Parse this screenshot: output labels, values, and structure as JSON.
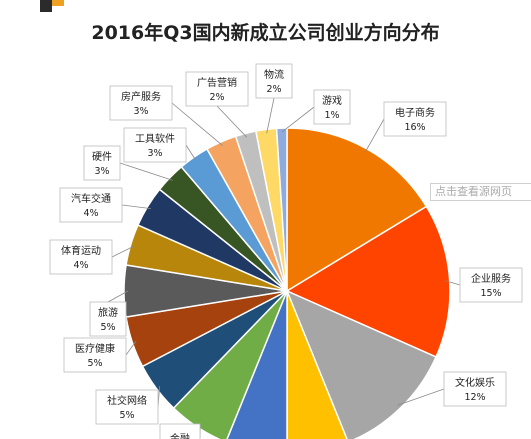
{
  "chart_data": {
    "type": "pie",
    "title": "2016年Q3国内新成立公司创业方向分布",
    "slices": [
      {
        "label": "电子商务",
        "value": 16,
        "value_label": "16%",
        "color": "#f07700"
      },
      {
        "label": "企业服务",
        "value": 15,
        "value_label": "15%",
        "color": "#ff4400"
      },
      {
        "label": "文化娱乐",
        "value": 12,
        "value_label": "12%",
        "color": "#a6a6a6"
      },
      {
        "label": "",
        "value": 6,
        "value_label": "",
        "color": "#ffc000"
      },
      {
        "label": "",
        "value": 6,
        "value_label": "",
        "color": "#4472c4"
      },
      {
        "label": "金融",
        "value": 6,
        "value_label": "",
        "color": "#70ad47"
      },
      {
        "label": "社交网络",
        "value": 5,
        "value_label": "5%",
        "color": "#1f4e79"
      },
      {
        "label": "医疗健康",
        "value": 5,
        "value_label": "5%",
        "color": "#a5420e"
      },
      {
        "label": "旅游",
        "value": 5,
        "value_label": "5%",
        "color": "#5a5a5a"
      },
      {
        "label": "体育运动",
        "value": 4,
        "value_label": "4%",
        "color": "#b8860b"
      },
      {
        "label": "汽车交通",
        "value": 4,
        "value_label": "4%",
        "color": "#203864"
      },
      {
        "label": "硬件",
        "value": 3,
        "value_label": "3%",
        "color": "#375623"
      },
      {
        "label": "工具软件",
        "value": 3,
        "value_label": "3%",
        "color": "#5b9bd5"
      },
      {
        "label": "房产服务",
        "value": 3,
        "value_label": "3%",
        "color": "#f4a460"
      },
      {
        "label": "广告营销",
        "value": 2,
        "value_label": "2%",
        "color": "#bfbfbf"
      },
      {
        "label": "物流",
        "value": 2,
        "value_label": "2%",
        "color": "#ffd966"
      },
      {
        "label": "游戏",
        "value": 1,
        "value_label": "1%",
        "color": "#8faadc"
      }
    ],
    "legend": "none"
  },
  "overlay": {
    "source_link": "点击查看源网页"
  }
}
